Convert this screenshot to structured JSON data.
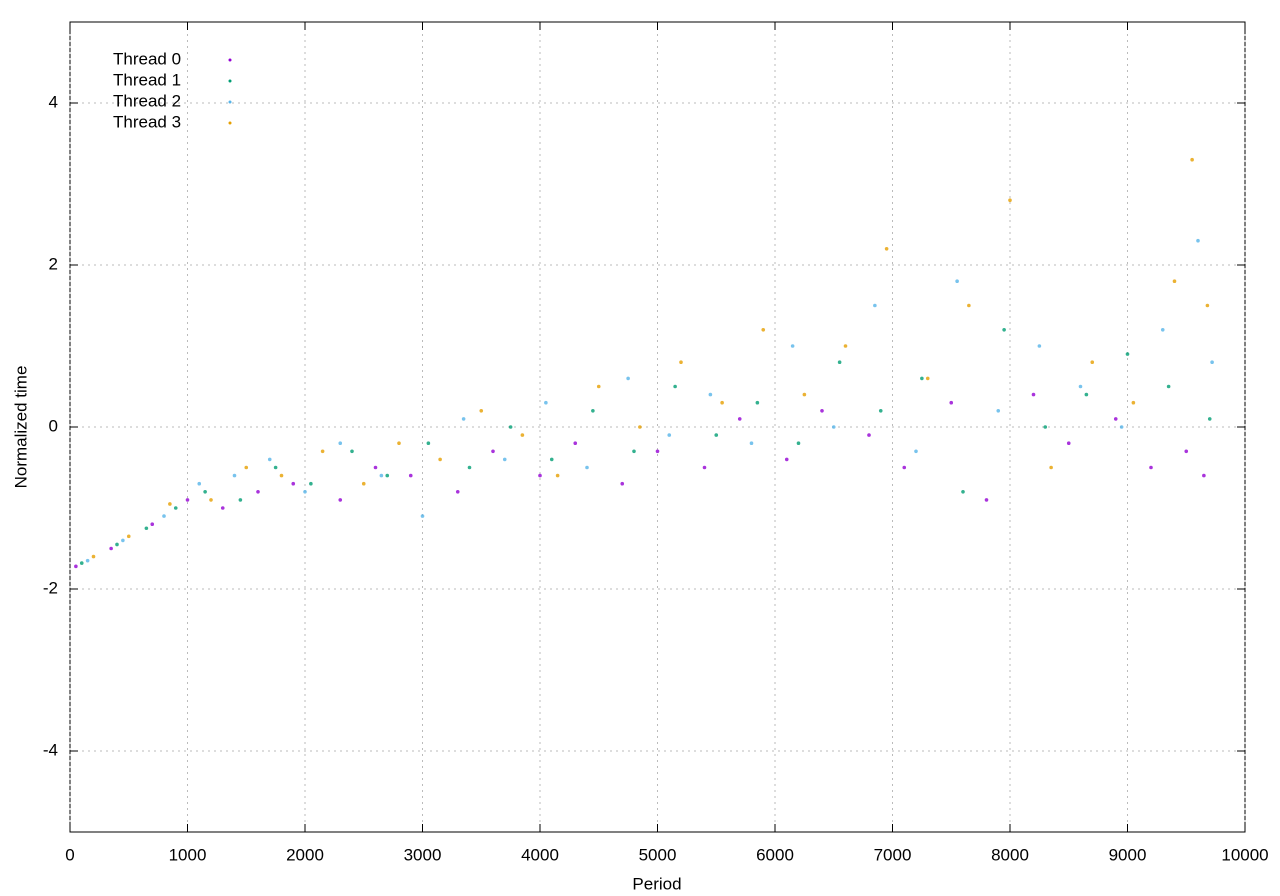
{
  "chart_data": {
    "type": "scatter",
    "x_label": "Period",
    "y_label": "Normalized time",
    "xlim": [
      0,
      10000
    ],
    "xticks": [
      0,
      1000,
      2000,
      3000,
      4000,
      5000,
      6000,
      7000,
      8000,
      9000,
      10000
    ],
    "ylim": [
      -5,
      5
    ],
    "yticks": [
      -4,
      -2,
      0,
      2,
      4
    ],
    "grid": true,
    "legend": "top-left",
    "series": [
      {
        "name": "Thread 0",
        "color": "#9400d3",
        "x": [
          50,
          350,
          700,
          1000,
          1300,
          1600,
          1900,
          2300,
          2600,
          2900,
          3300,
          3600,
          4000,
          4300,
          4700,
          5000,
          5400,
          5700,
          6100,
          6400,
          6800,
          7100,
          7500,
          7800,
          8200,
          8500,
          8900,
          9200,
          9500,
          9650
        ],
        "values": [
          -1.72,
          -1.5,
          -1.2,
          -0.9,
          -1.0,
          -0.8,
          -0.7,
          -0.9,
          -0.5,
          -0.6,
          -0.8,
          -0.3,
          -0.6,
          -0.2,
          -0.7,
          -0.3,
          -0.5,
          0.1,
          -0.4,
          0.2,
          -0.1,
          -0.5,
          0.3,
          -0.9,
          0.4,
          -0.2,
          0.1,
          -0.5,
          -0.3,
          -0.6
        ]
      },
      {
        "name": "Thread 1",
        "color": "#009e73",
        "x": [
          100,
          400,
          650,
          900,
          1150,
          1450,
          1750,
          2050,
          2400,
          2700,
          3050,
          3400,
          3750,
          4100,
          4450,
          4800,
          5150,
          5500,
          5850,
          6200,
          6550,
          6900,
          7250,
          7600,
          7950,
          8300,
          8650,
          9000,
          9350,
          9700
        ],
        "values": [
          -1.68,
          -1.45,
          -1.25,
          -1.0,
          -0.8,
          -0.9,
          -0.5,
          -0.7,
          -0.3,
          -0.6,
          -0.2,
          -0.5,
          0.0,
          -0.4,
          0.2,
          -0.3,
          0.5,
          -0.1,
          0.3,
          -0.2,
          0.8,
          0.2,
          0.6,
          -0.8,
          1.2,
          0.0,
          0.4,
          0.9,
          0.5,
          0.1
        ]
      },
      {
        "name": "Thread 2",
        "color": "#56b4e9",
        "x": [
          150,
          450,
          800,
          1100,
          1400,
          1700,
          2000,
          2300,
          2650,
          3000,
          3350,
          3700,
          4050,
          4400,
          4750,
          5100,
          5450,
          5800,
          6150,
          6500,
          6850,
          7200,
          7550,
          7900,
          8250,
          8600,
          8950,
          9300,
          9600,
          9720
        ],
        "values": [
          -1.65,
          -1.4,
          -1.1,
          -0.7,
          -0.6,
          -0.4,
          -0.8,
          -0.2,
          -0.6,
          -1.1,
          0.1,
          -0.4,
          0.3,
          -0.5,
          0.6,
          -0.1,
          0.4,
          -0.2,
          1.0,
          0.0,
          1.5,
          -0.3,
          1.8,
          0.2,
          1.0,
          0.5,
          0.0,
          1.2,
          2.3,
          0.8
        ]
      },
      {
        "name": "Thread 3",
        "color": "#e69f00",
        "x": [
          200,
          500,
          850,
          1200,
          1500,
          1800,
          2150,
          2500,
          2800,
          3150,
          3500,
          3850,
          4150,
          4500,
          4850,
          5200,
          5550,
          5900,
          6250,
          6600,
          6950,
          7300,
          7650,
          8000,
          8350,
          8700,
          9050,
          9400,
          9550,
          9680
        ],
        "values": [
          -1.6,
          -1.35,
          -0.95,
          -0.9,
          -0.5,
          -0.6,
          -0.3,
          -0.7,
          -0.2,
          -0.4,
          0.2,
          -0.1,
          -0.6,
          0.5,
          0.0,
          0.8,
          0.3,
          1.2,
          0.4,
          1.0,
          2.2,
          0.6,
          1.5,
          2.8,
          -0.5,
          0.8,
          0.3,
          1.8,
          3.3,
          1.5
        ]
      }
    ]
  }
}
